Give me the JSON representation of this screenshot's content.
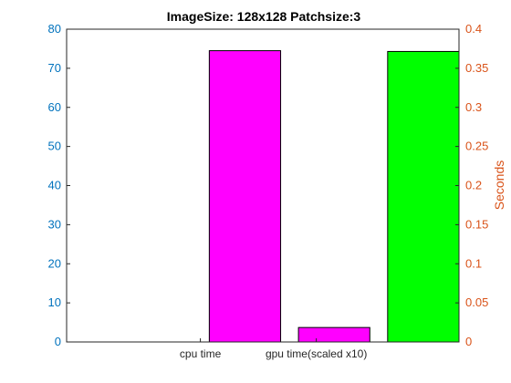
{
  "chart_data": {
    "type": "bar",
    "title": "ImageSize: 128x128 Patchsize:3",
    "categories": [
      "cpu time",
      "gpu time(scaled x10)",
      ""
    ],
    "values": [
      74.5,
      3.7,
      74.3
    ],
    "bar_colors": [
      "#FF00FF",
      "#FF00FF",
      "#00FF00"
    ],
    "x_tick_labels": [
      "cpu time",
      "gpu time(scaled x10)"
    ],
    "y_left": {
      "range": [
        0,
        80
      ],
      "ticks": [
        "0",
        "10",
        "20",
        "30",
        "40",
        "50",
        "60",
        "70",
        "80"
      ],
      "color": "#0072BD"
    },
    "y_right": {
      "label": "Seconds",
      "range": [
        0,
        0.4
      ],
      "ticks": [
        "0",
        "0.05",
        "0.1",
        "0.15",
        "0.2",
        "0.25",
        "0.3",
        "0.35",
        "0.4"
      ],
      "color": "#D95319"
    },
    "grid": false,
    "legend": false
  }
}
